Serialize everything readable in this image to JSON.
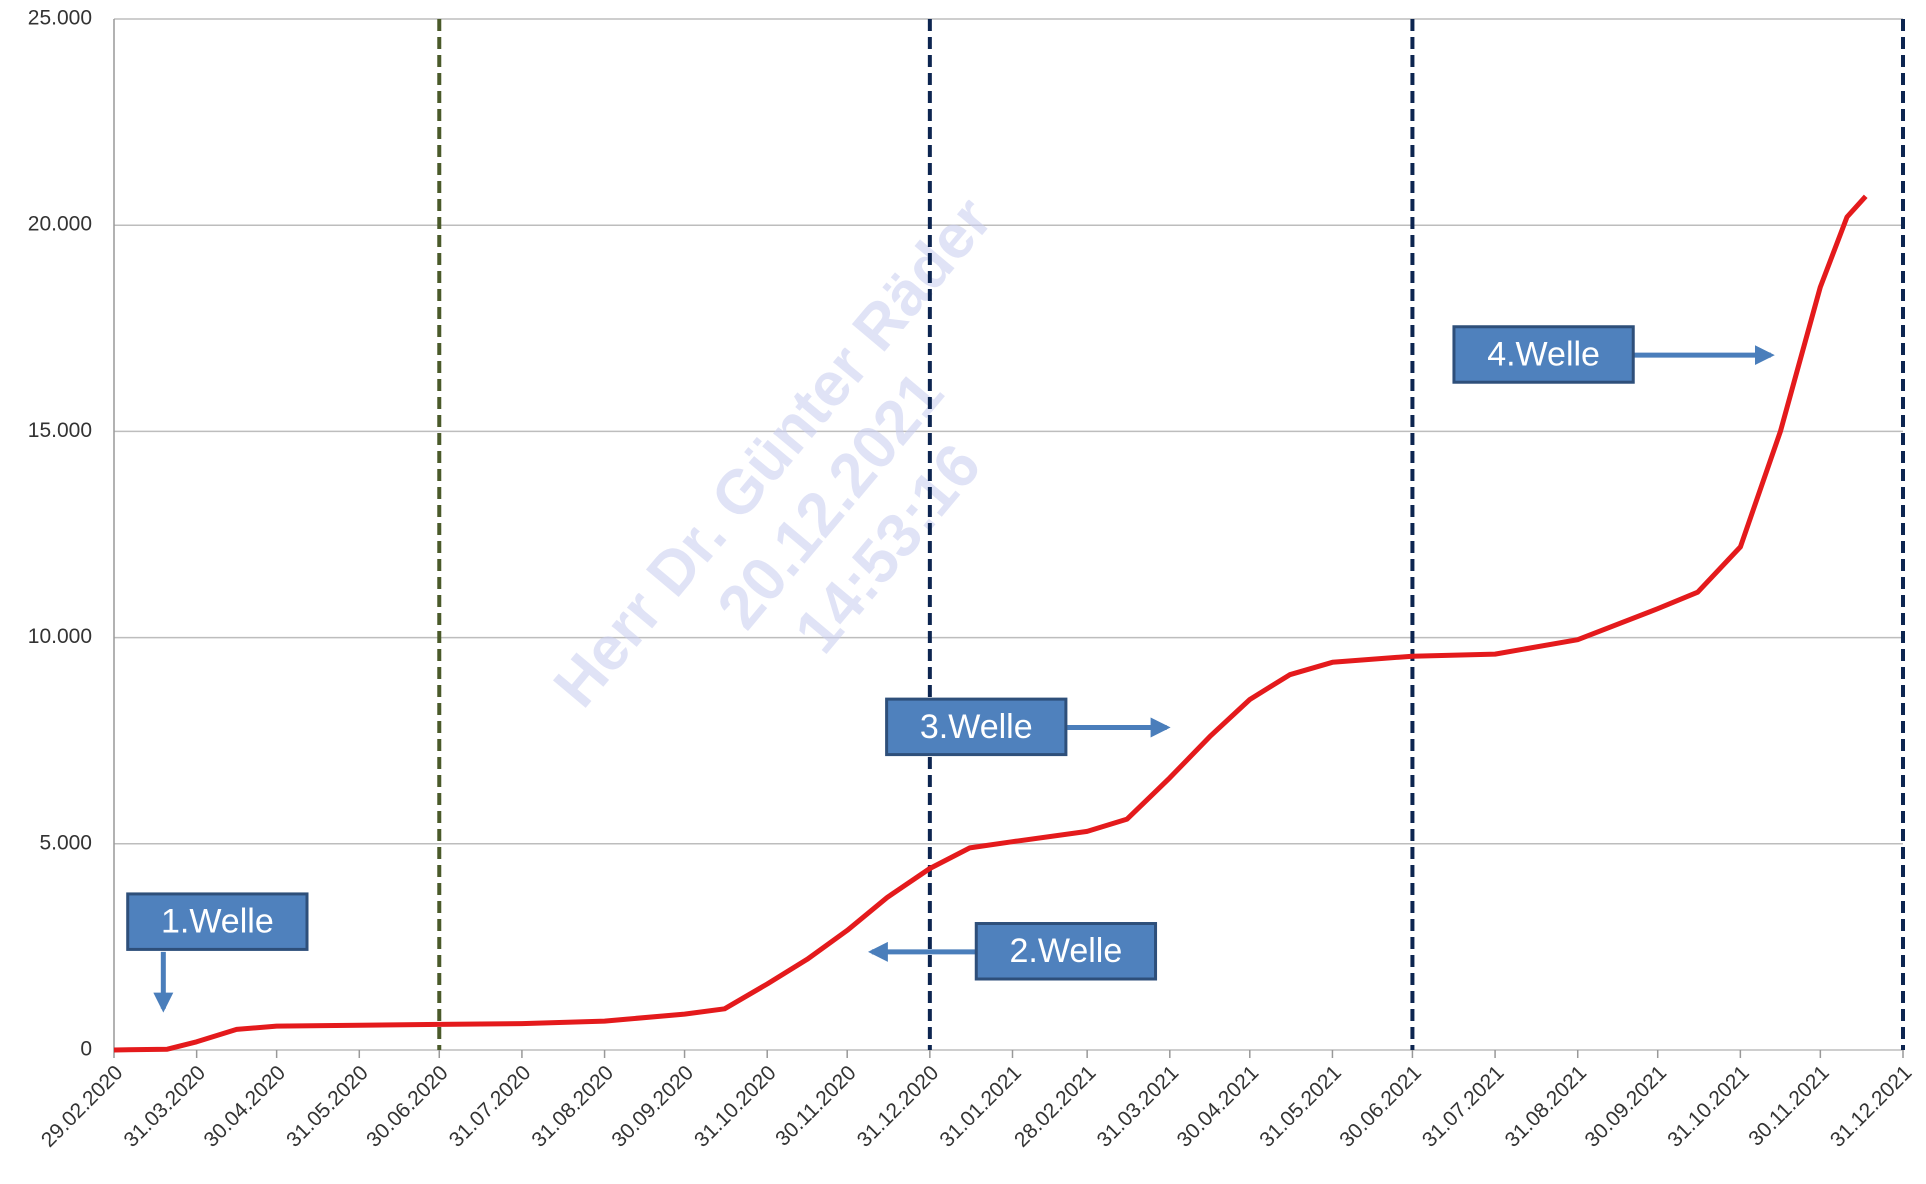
{
  "chart_data": {
    "type": "line",
    "x": [
      "29.02.2020",
      "20.03.2020",
      "31.03.2020",
      "15.04.2020",
      "30.04.2020",
      "31.05.2020",
      "30.06.2020",
      "31.07.2020",
      "31.08.2020",
      "30.09.2020",
      "15.10.2020",
      "31.10.2020",
      "15.11.2020",
      "30.11.2020",
      "15.12.2020",
      "31.12.2020",
      "15.01.2021",
      "31.01.2021",
      "28.02.2021",
      "15.03.2021",
      "31.03.2021",
      "15.04.2021",
      "30.04.2021",
      "15.05.2021",
      "31.05.2021",
      "30.06.2021",
      "31.07.2021",
      "31.08.2021",
      "30.09.2021",
      "15.10.2021",
      "31.10.2021",
      "15.11.2021",
      "30.11.2021",
      "10.12.2021",
      "17.12.2021"
    ],
    "series": [
      {
        "color": "#e41a1c",
        "values": [
          0,
          20,
          200,
          500,
          580,
          600,
          620,
          640,
          700,
          870,
          1000,
          1600,
          2200,
          2900,
          3700,
          4400,
          4900,
          5050,
          5300,
          5600,
          6600,
          7600,
          8500,
          9100,
          9400,
          9550,
          9600,
          9950,
          10700,
          11100,
          12200,
          15000,
          18500,
          20200,
          20700
        ]
      }
    ],
    "xlim": [
      "29.02.2020",
      "31.12.2021"
    ],
    "xticks": [
      "29.02.2020",
      "31.03.2020",
      "30.04.2020",
      "31.05.2020",
      "30.06.2020",
      "31.07.2020",
      "31.08.2020",
      "30.09.2020",
      "31.10.2020",
      "30.11.2020",
      "31.12.2020",
      "31.01.2021",
      "28.02.2021",
      "31.03.2021",
      "30.04.2021",
      "31.05.2021",
      "30.06.2021",
      "31.07.2021",
      "31.08.2021",
      "30.09.2021",
      "31.10.2021",
      "30.11.2021",
      "31.12.2021"
    ],
    "ylim": [
      0,
      25000
    ],
    "yticks": [
      0,
      {
        "value": 5000,
        "label": "5.000"
      },
      {
        "value": 10000,
        "label": "10.000"
      },
      {
        "value": 15000,
        "label": "15.000"
      },
      {
        "value": 20000,
        "label": "20.000"
      },
      {
        "value": 25000,
        "label": "25.000"
      }
    ],
    "grid": true,
    "vlines": [
      {
        "x": "30.06.2020",
        "color": "#4a5a2a"
      },
      {
        "x": "31.12.2020",
        "color": "#0d2550"
      },
      {
        "x": "30.06.2021",
        "color": "#0d2550"
      },
      {
        "x": "31.12.2021",
        "color": "#0d2550"
      }
    ],
    "annotations": [
      "1.Welle",
      "2.Welle",
      "3.Welle",
      "4.Welle"
    ],
    "watermark": [
      "Herr Dr. Günter Räder",
      "20.12.2021",
      "14:53:16"
    ]
  }
}
